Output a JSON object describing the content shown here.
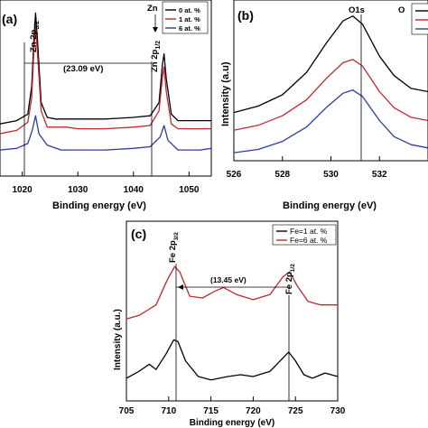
{
  "chart_data": [
    {
      "panel": "(a)",
      "type": "line",
      "xlabel": "Binding energy (eV)",
      "ylabel": "",
      "xlim": [
        1016,
        1054
      ],
      "x_ticks": [
        1020,
        1030,
        1040,
        1050
      ],
      "legend": {
        "title": "Zn",
        "position": "top-right",
        "entries": [
          "0 at. %",
          "1 at. %",
          "6 at. %"
        ]
      },
      "series": [
        {
          "name": "0 at. %",
          "color": "#000000",
          "points": [
            [
              1016,
              0.32
            ],
            [
              1019,
              0.34
            ],
            [
              1021,
              0.38
            ],
            [
              1021.7,
              0.55
            ],
            [
              1022.1,
              0.85
            ],
            [
              1022.4,
              1.0
            ],
            [
              1022.8,
              0.8
            ],
            [
              1023.4,
              0.45
            ],
            [
              1024.5,
              0.36
            ],
            [
              1026,
              0.35
            ],
            [
              1030,
              0.35
            ],
            [
              1035,
              0.35
            ],
            [
              1040,
              0.36
            ],
            [
              1043,
              0.37
            ],
            [
              1044.6,
              0.45
            ],
            [
              1045.2,
              0.68
            ],
            [
              1045.5,
              0.75
            ],
            [
              1045.9,
              0.6
            ],
            [
              1046.8,
              0.38
            ],
            [
              1048,
              0.34
            ],
            [
              1052,
              0.34
            ],
            [
              1054,
              0.34
            ]
          ]
        },
        {
          "name": "1 at. %",
          "color": "#c0282d",
          "points": [
            [
              1016,
              0.26
            ],
            [
              1019,
              0.28
            ],
            [
              1021,
              0.33
            ],
            [
              1021.7,
              0.48
            ],
            [
              1022.1,
              0.78
            ],
            [
              1022.4,
              0.92
            ],
            [
              1022.8,
              0.72
            ],
            [
              1023.4,
              0.4
            ],
            [
              1024.5,
              0.3
            ],
            [
              1026,
              0.3
            ],
            [
              1028,
              0.3
            ],
            [
              1030,
              0.29
            ],
            [
              1035,
              0.29
            ],
            [
              1040,
              0.3
            ],
            [
              1043,
              0.31
            ],
            [
              1044.6,
              0.4
            ],
            [
              1045.2,
              0.6
            ],
            [
              1045.5,
              0.67
            ],
            [
              1045.9,
              0.52
            ],
            [
              1046.8,
              0.32
            ],
            [
              1048,
              0.29
            ],
            [
              1052,
              0.29
            ],
            [
              1054,
              0.29
            ]
          ]
        },
        {
          "name": "6 at. %",
          "color": "#2b3d9e",
          "points": [
            [
              1016,
              0.16
            ],
            [
              1019,
              0.17
            ],
            [
              1021,
              0.2
            ],
            [
              1021.8,
              0.28
            ],
            [
              1022.4,
              0.37
            ],
            [
              1023,
              0.26
            ],
            [
              1024.5,
              0.19
            ],
            [
              1027,
              0.16
            ],
            [
              1030,
              0.16
            ],
            [
              1035,
              0.16
            ],
            [
              1040,
              0.17
            ],
            [
              1043,
              0.18
            ],
            [
              1044.8,
              0.24
            ],
            [
              1045.5,
              0.31
            ],
            [
              1046.2,
              0.22
            ],
            [
              1048,
              0.16
            ],
            [
              1052,
              0.16
            ],
            [
              1054,
              0.17
            ]
          ]
        }
      ],
      "annotations": [
        {
          "text": "Zn 2p3/2",
          "x": 1022.4
        },
        {
          "text": "Zn 2p1/2",
          "x": 1045.5
        },
        {
          "text": "(23.09 eV)",
          "x1": 1022.4,
          "x2": 1045.5
        }
      ]
    },
    {
      "panel": "(b)",
      "type": "line",
      "xlabel": "Binding energy (eV)",
      "ylabel": "Intensity (a.u)",
      "xlim": [
        526,
        534
      ],
      "x_ticks": [
        526,
        528,
        530,
        532
      ],
      "legend": {
        "title": "O",
        "position": "top-right",
        "entries": []
      },
      "series": [
        {
          "name": "",
          "color": "#000000",
          "points": [
            [
              526,
              0.25
            ],
            [
              527,
              0.29
            ],
            [
              528,
              0.36
            ],
            [
              529,
              0.5
            ],
            [
              529.8,
              0.68
            ],
            [
              530.5,
              0.82
            ],
            [
              530.9,
              0.85
            ],
            [
              531.3,
              0.8
            ],
            [
              532,
              0.6
            ],
            [
              532.6,
              0.48
            ],
            [
              533.3,
              0.4
            ],
            [
              534,
              0.38
            ]
          ]
        },
        {
          "name": "",
          "color": "#c0282d",
          "points": [
            [
              526,
              0.14
            ],
            [
              527,
              0.17
            ],
            [
              528,
              0.23
            ],
            [
              529,
              0.33
            ],
            [
              529.8,
              0.46
            ],
            [
              530.5,
              0.56
            ],
            [
              530.9,
              0.58
            ],
            [
              531.3,
              0.54
            ],
            [
              532,
              0.38
            ],
            [
              532.6,
              0.28
            ],
            [
              533.3,
              0.22
            ],
            [
              534,
              0.2
            ]
          ]
        },
        {
          "name": "",
          "color": "#2b3d9e",
          "points": [
            [
              526,
              0.0
            ],
            [
              527,
              0.02
            ],
            [
              528,
              0.07
            ],
            [
              529,
              0.16
            ],
            [
              529.8,
              0.28
            ],
            [
              530.5,
              0.37
            ],
            [
              530.9,
              0.39
            ],
            [
              531.3,
              0.35
            ],
            [
              532,
              0.2
            ],
            [
              532.6,
              0.1
            ],
            [
              533.3,
              0.05
            ],
            [
              534,
              0.03
            ]
          ]
        }
      ],
      "annotations": [
        {
          "text": "O1s",
          "x": 530.9
        }
      ]
    },
    {
      "panel": "(c)",
      "type": "line",
      "xlabel": "Binding energy (eV)",
      "ylabel": "Intensity (a.u.)",
      "xlim": [
        705,
        730
      ],
      "x_ticks": [
        705,
        710,
        715,
        720,
        725,
        730
      ],
      "legend": {
        "position": "top-right",
        "entries": [
          "Fe=1 at. %",
          "Fe=6 at. %"
        ]
      },
      "series": [
        {
          "name": "Fe=1 at. %",
          "color": "#000000",
          "points": [
            [
              705,
              0.08
            ],
            [
              706.5,
              0.12
            ],
            [
              707.7,
              0.16
            ],
            [
              708.5,
              0.13
            ],
            [
              709.7,
              0.22
            ],
            [
              710.6,
              0.3
            ],
            [
              711.1,
              0.29
            ],
            [
              712,
              0.18
            ],
            [
              713.5,
              0.09
            ],
            [
              715,
              0.07
            ],
            [
              717,
              0.09
            ],
            [
              718.5,
              0.1
            ],
            [
              720,
              0.09
            ],
            [
              722,
              0.12
            ],
            [
              723.6,
              0.2
            ],
            [
              724.2,
              0.23
            ],
            [
              725,
              0.18
            ],
            [
              726,
              0.1
            ],
            [
              727,
              0.08
            ],
            [
              728.5,
              0.11
            ],
            [
              730,
              0.09
            ]
          ]
        },
        {
          "name": "Fe=6 at. %",
          "color": "#c0282d",
          "points": [
            [
              705,
              0.42
            ],
            [
              706.5,
              0.44
            ],
            [
              707.5,
              0.47
            ],
            [
              708.5,
              0.5
            ],
            [
              709.8,
              0.64
            ],
            [
              710.7,
              0.72
            ],
            [
              711.3,
              0.69
            ],
            [
              712.5,
              0.55
            ],
            [
              714,
              0.54
            ],
            [
              715.5,
              0.58
            ],
            [
              716.5,
              0.6
            ],
            [
              718,
              0.56
            ],
            [
              720,
              0.53
            ],
            [
              722,
              0.56
            ],
            [
              723.5,
              0.66
            ],
            [
              724.3,
              0.69
            ],
            [
              725.2,
              0.61
            ],
            [
              726.5,
              0.52
            ],
            [
              728,
              0.5
            ],
            [
              730,
              0.5
            ]
          ]
        }
      ],
      "annotations": [
        {
          "text": "Fe 2p3/2",
          "x": 710.9
        },
        {
          "text": "Fe 2p1/2",
          "x": 724.3
        },
        {
          "text": "(13.45 eV)",
          "x1": 710.9,
          "x2": 724.3
        }
      ]
    }
  ],
  "panelA": {
    "label": "(a)",
    "xlabel": "Binding energy (eV)",
    "ticks": [
      "1020",
      "1030",
      "1040",
      "1050"
    ],
    "legend_title": "Zn",
    "legend": [
      "0 at. %",
      "1 at. %",
      "6 at. %"
    ],
    "peak1_main": "Zn 2p",
    "peak1_sub": "3/2",
    "peak2_main": "Zn 2p",
    "peak2_sub": "1/2",
    "split": "(23.09 eV)"
  },
  "panelB": {
    "label": "(b)",
    "xlabel": "Binding energy (eV)",
    "ylabel": "Intensity (a.u)",
    "ticks": [
      "526",
      "528",
      "530",
      "532"
    ],
    "legend_title": "O",
    "peak": "O1s"
  },
  "panelC": {
    "label": "(c)",
    "xlabel": "Binding energy (eV)",
    "ylabel": "Intensity (a.u.)",
    "ticks": [
      "705",
      "710",
      "715",
      "720",
      "725",
      "730"
    ],
    "legend": [
      "Fe=1 at. %",
      "Fe=6 at. %"
    ],
    "peak1_main": "Fe 2p",
    "peak1_sub": "3/2",
    "peak2_main": "Fe 2p",
    "peak2_sub": "1/2",
    "split": "(13.45 eV)"
  },
  "colors": {
    "black": "#000000",
    "red": "#c0282d",
    "blue": "#2b3d9e"
  }
}
